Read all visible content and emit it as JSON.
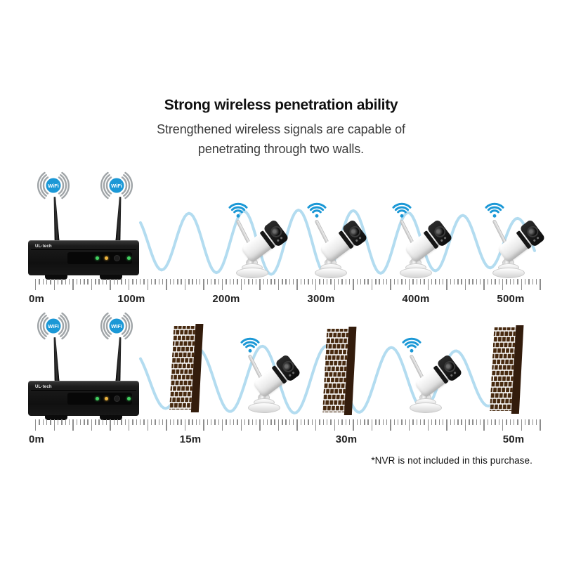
{
  "header": {
    "title": "Strong wireless penetration ability",
    "subtitle": "Strengthened wireless signals are capable of penetrating through two walls."
  },
  "nvr": {
    "logo": "UL-tech",
    "wifi_label": "WiFi"
  },
  "scales": {
    "top": {
      "unit": "m",
      "labels": [
        "0m",
        "100m",
        "200m",
        "300m",
        "400m",
        "500m"
      ]
    },
    "bottom": {
      "unit": "m",
      "labels": [
        "0m",
        "15m",
        "30m",
        "50m"
      ]
    }
  },
  "footnote": "*NVR is not included in this purchase.",
  "colors": {
    "wifi_blue": "#1b98d6",
    "signal_wave": "#b3dcf0",
    "wifi_arc_gray": "#a0a5a8",
    "brick": "#47290f",
    "brick_side": "#331c0c",
    "tick": "#8d8d8d",
    "led_green": "#43d160",
    "led_amber": "#edb43e"
  }
}
